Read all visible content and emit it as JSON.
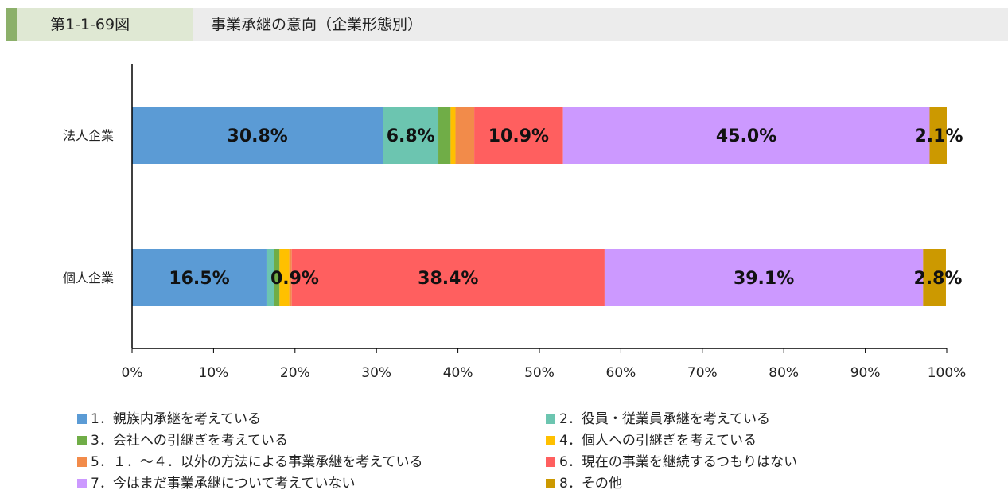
{
  "header": {
    "figure_number": "第1-1-69図",
    "title": "事業承継の意向（企業形態別）"
  },
  "chart_data": {
    "type": "bar",
    "orientation": "horizontal",
    "stacked": true,
    "categories": [
      "法人企業",
      "個人企業"
    ],
    "xlim": [
      0,
      100
    ],
    "xticks": [
      "0%",
      "10%",
      "20%",
      "30%",
      "40%",
      "50%",
      "60%",
      "70%",
      "80%",
      "90%",
      "100%"
    ],
    "grid": false,
    "legend_position": "bottom",
    "series": [
      {
        "name": "1. 親族内承継を考えている",
        "color": "#5b9bd5",
        "values": [
          30.8,
          16.5
        ],
        "labels": [
          "30.8%",
          "16.5%"
        ]
      },
      {
        "name": "2. 役員・従業員承継を考えている",
        "color": "#6cc5b0",
        "values": [
          6.8,
          0.9
        ],
        "labels": [
          "6.8%",
          "0.9%"
        ]
      },
      {
        "name": "3. 会社への引継ぎを考えている",
        "color": "#70ad47",
        "values": [
          1.5,
          0.7
        ],
        "labels": [
          "",
          ""
        ]
      },
      {
        "name": "4. 個人への引継ぎを考えている",
        "color": "#ffc000",
        "values": [
          0.6,
          1.2
        ],
        "labels": [
          "",
          ""
        ]
      },
      {
        "name": "5. １．～４．以外の方法による事業承継を考えている",
        "color": "#f28b4a",
        "values": [
          2.3,
          0.3
        ],
        "labels": [
          "",
          ""
        ]
      },
      {
        "name": "6. 現在の事業を継続するつもりはない",
        "color": "#ff5f5f",
        "values": [
          10.9,
          38.4
        ],
        "labels": [
          "10.9%",
          "38.4%"
        ]
      },
      {
        "name": "7. 今はまだ事業承継について考えていない",
        "color": "#cc99ff",
        "values": [
          45.0,
          39.1
        ],
        "labels": [
          "45.0%",
          "39.1%"
        ]
      },
      {
        "name": "8. その他",
        "color": "#cc9900",
        "values": [
          2.1,
          2.8
        ],
        "labels": [
          "2.1%",
          "2.8%"
        ]
      }
    ],
    "legend_labels": [
      "1．親族内承継を考えている",
      "2．役員・従業員承継を考えている",
      "3．会社への引継ぎを考えている",
      "4．個人への引継ぎを考えている",
      "5．１．～４．以外の方法による事業承継を考えている",
      "6．現在の事業を継続するつもりはない",
      "7．今はまだ事業承継について考えていない",
      "8．その他"
    ]
  }
}
